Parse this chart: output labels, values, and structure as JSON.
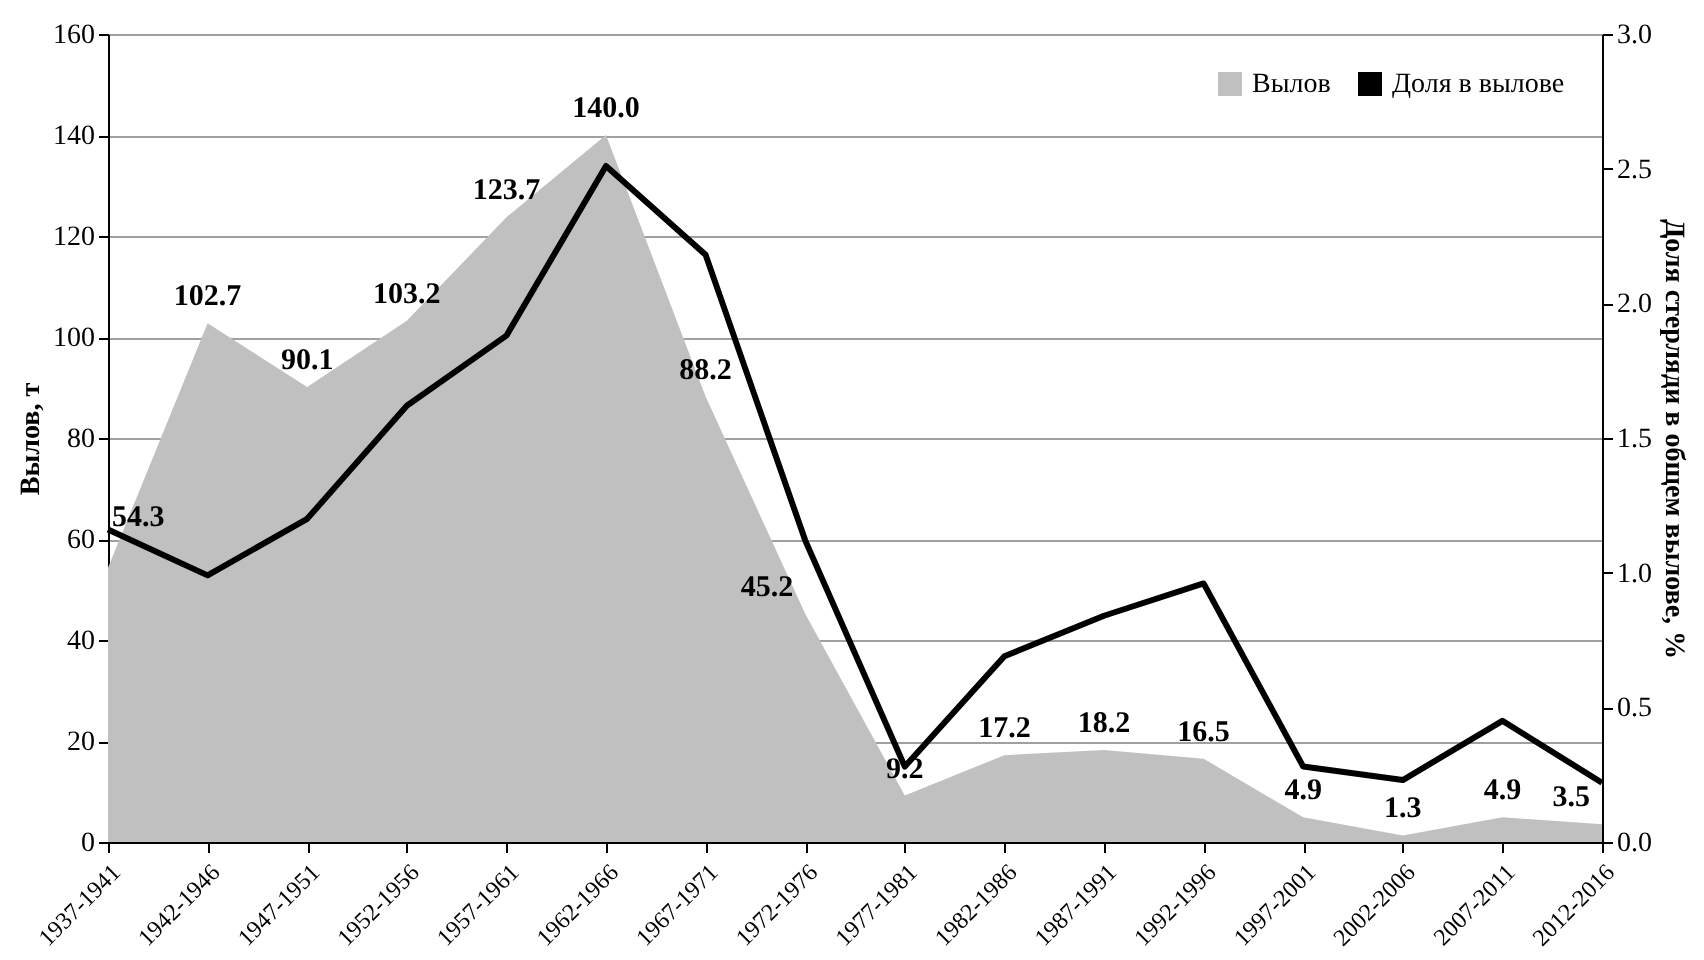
{
  "chart_data": {
    "type": "area",
    "categories": [
      "1937-1941",
      "1942-1946",
      "1947-1951",
      "1952-1956",
      "1957-1961",
      "1962-1966",
      "1967-1971",
      "1972-1976",
      "1977-1981",
      "1982-1986",
      "1987-1991",
      "1992-1996",
      "1997-2001",
      "2002-2006",
      "2007-2011",
      "2012-2016"
    ],
    "series": [
      {
        "name": "Вылов",
        "color": "#c0c0c0",
        "values": [
          54.3,
          102.7,
          90.1,
          103.2,
          123.7,
          140.0,
          88.2,
          45.2,
          9.2,
          17.2,
          18.2,
          16.5,
          4.9,
          1.3,
          4.9,
          3.5
        ],
        "value_labels": [
          "54.3",
          "102.7",
          "90.1",
          "103.2",
          "123.7",
          "140.0",
          "88.2",
          "45.2",
          "9.2",
          "17.2",
          "18.2",
          "16.5",
          "4.9",
          "1.3",
          "4.9",
          "3.5"
        ]
      },
      {
        "name": "Доля в вылове",
        "type": "line",
        "axis": "y2",
        "color": "#000000",
        "values": [
          1.16,
          0.99,
          1.2,
          1.62,
          1.88,
          2.51,
          2.18,
          1.12,
          0.28,
          0.69,
          0.84,
          0.96,
          0.28,
          0.23,
          0.45,
          0.22
        ]
      }
    ],
    "ylabel": "Вылов, т",
    "y2label": "Доля стерляди в общем вылове, %",
    "ylim": [
      0,
      160
    ],
    "yticks": [
      0,
      20,
      40,
      60,
      80,
      100,
      120,
      140,
      160
    ],
    "y2lim": [
      0,
      3
    ],
    "y2ticks": [
      {
        "value": 0,
        "label": "0.0"
      },
      {
        "value": 0.5,
        "label": "0.5"
      },
      {
        "value": 1,
        "label": "1.0"
      },
      {
        "value": 1.5,
        "label": "1.5"
      },
      {
        "value": 2,
        "label": "2.0"
      },
      {
        "value": 2.5,
        "label": "2.5"
      },
      {
        "value": 3,
        "label": "3.0"
      }
    ],
    "grid": "y",
    "legend": "top right"
  }
}
